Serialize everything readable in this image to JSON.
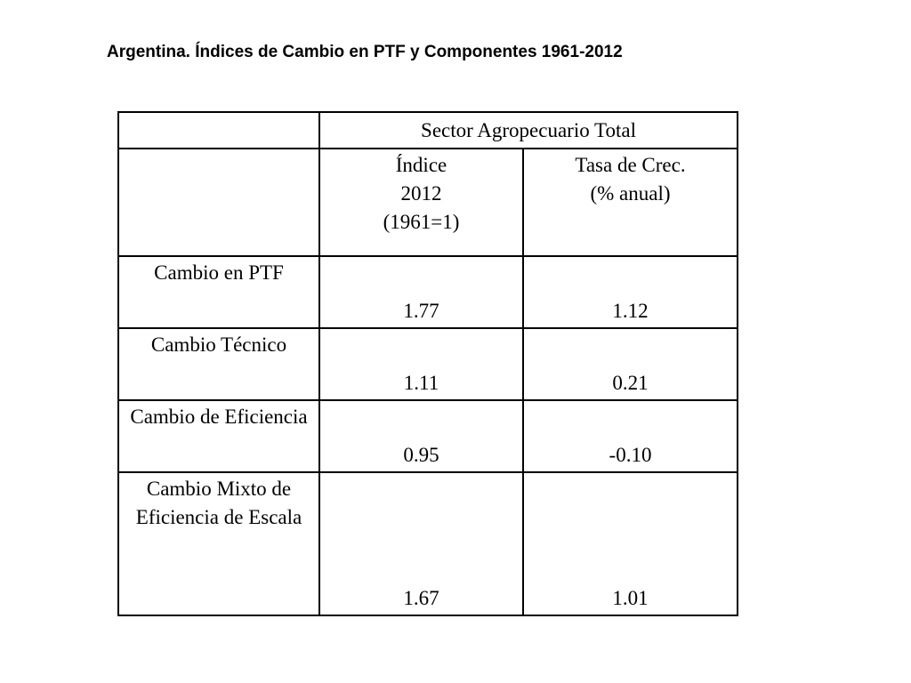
{
  "title": "Argentina. Índices de Cambio en PTF y Componentes 1961-2012",
  "table": {
    "group_header": "Sector Agropecuario Total",
    "col_index": {
      "line1": "Índice",
      "line2": "2012",
      "line3": "(1961=1)"
    },
    "col_rate": {
      "line1": "Tasa de Crec.",
      "line2": "(% anual)"
    },
    "rows": [
      {
        "label": "Cambio en PTF",
        "index": "1.77",
        "rate": "1.12"
      },
      {
        "label": "Cambio Técnico",
        "index": "1.11",
        "rate": "0.21"
      },
      {
        "label": "Cambio de Eficiencia",
        "index": "0.95",
        "rate": "-0.10"
      },
      {
        "label": "Cambio Mixto de Eficiencia de Escala",
        "index": "1.67",
        "rate": "1.01"
      }
    ]
  }
}
